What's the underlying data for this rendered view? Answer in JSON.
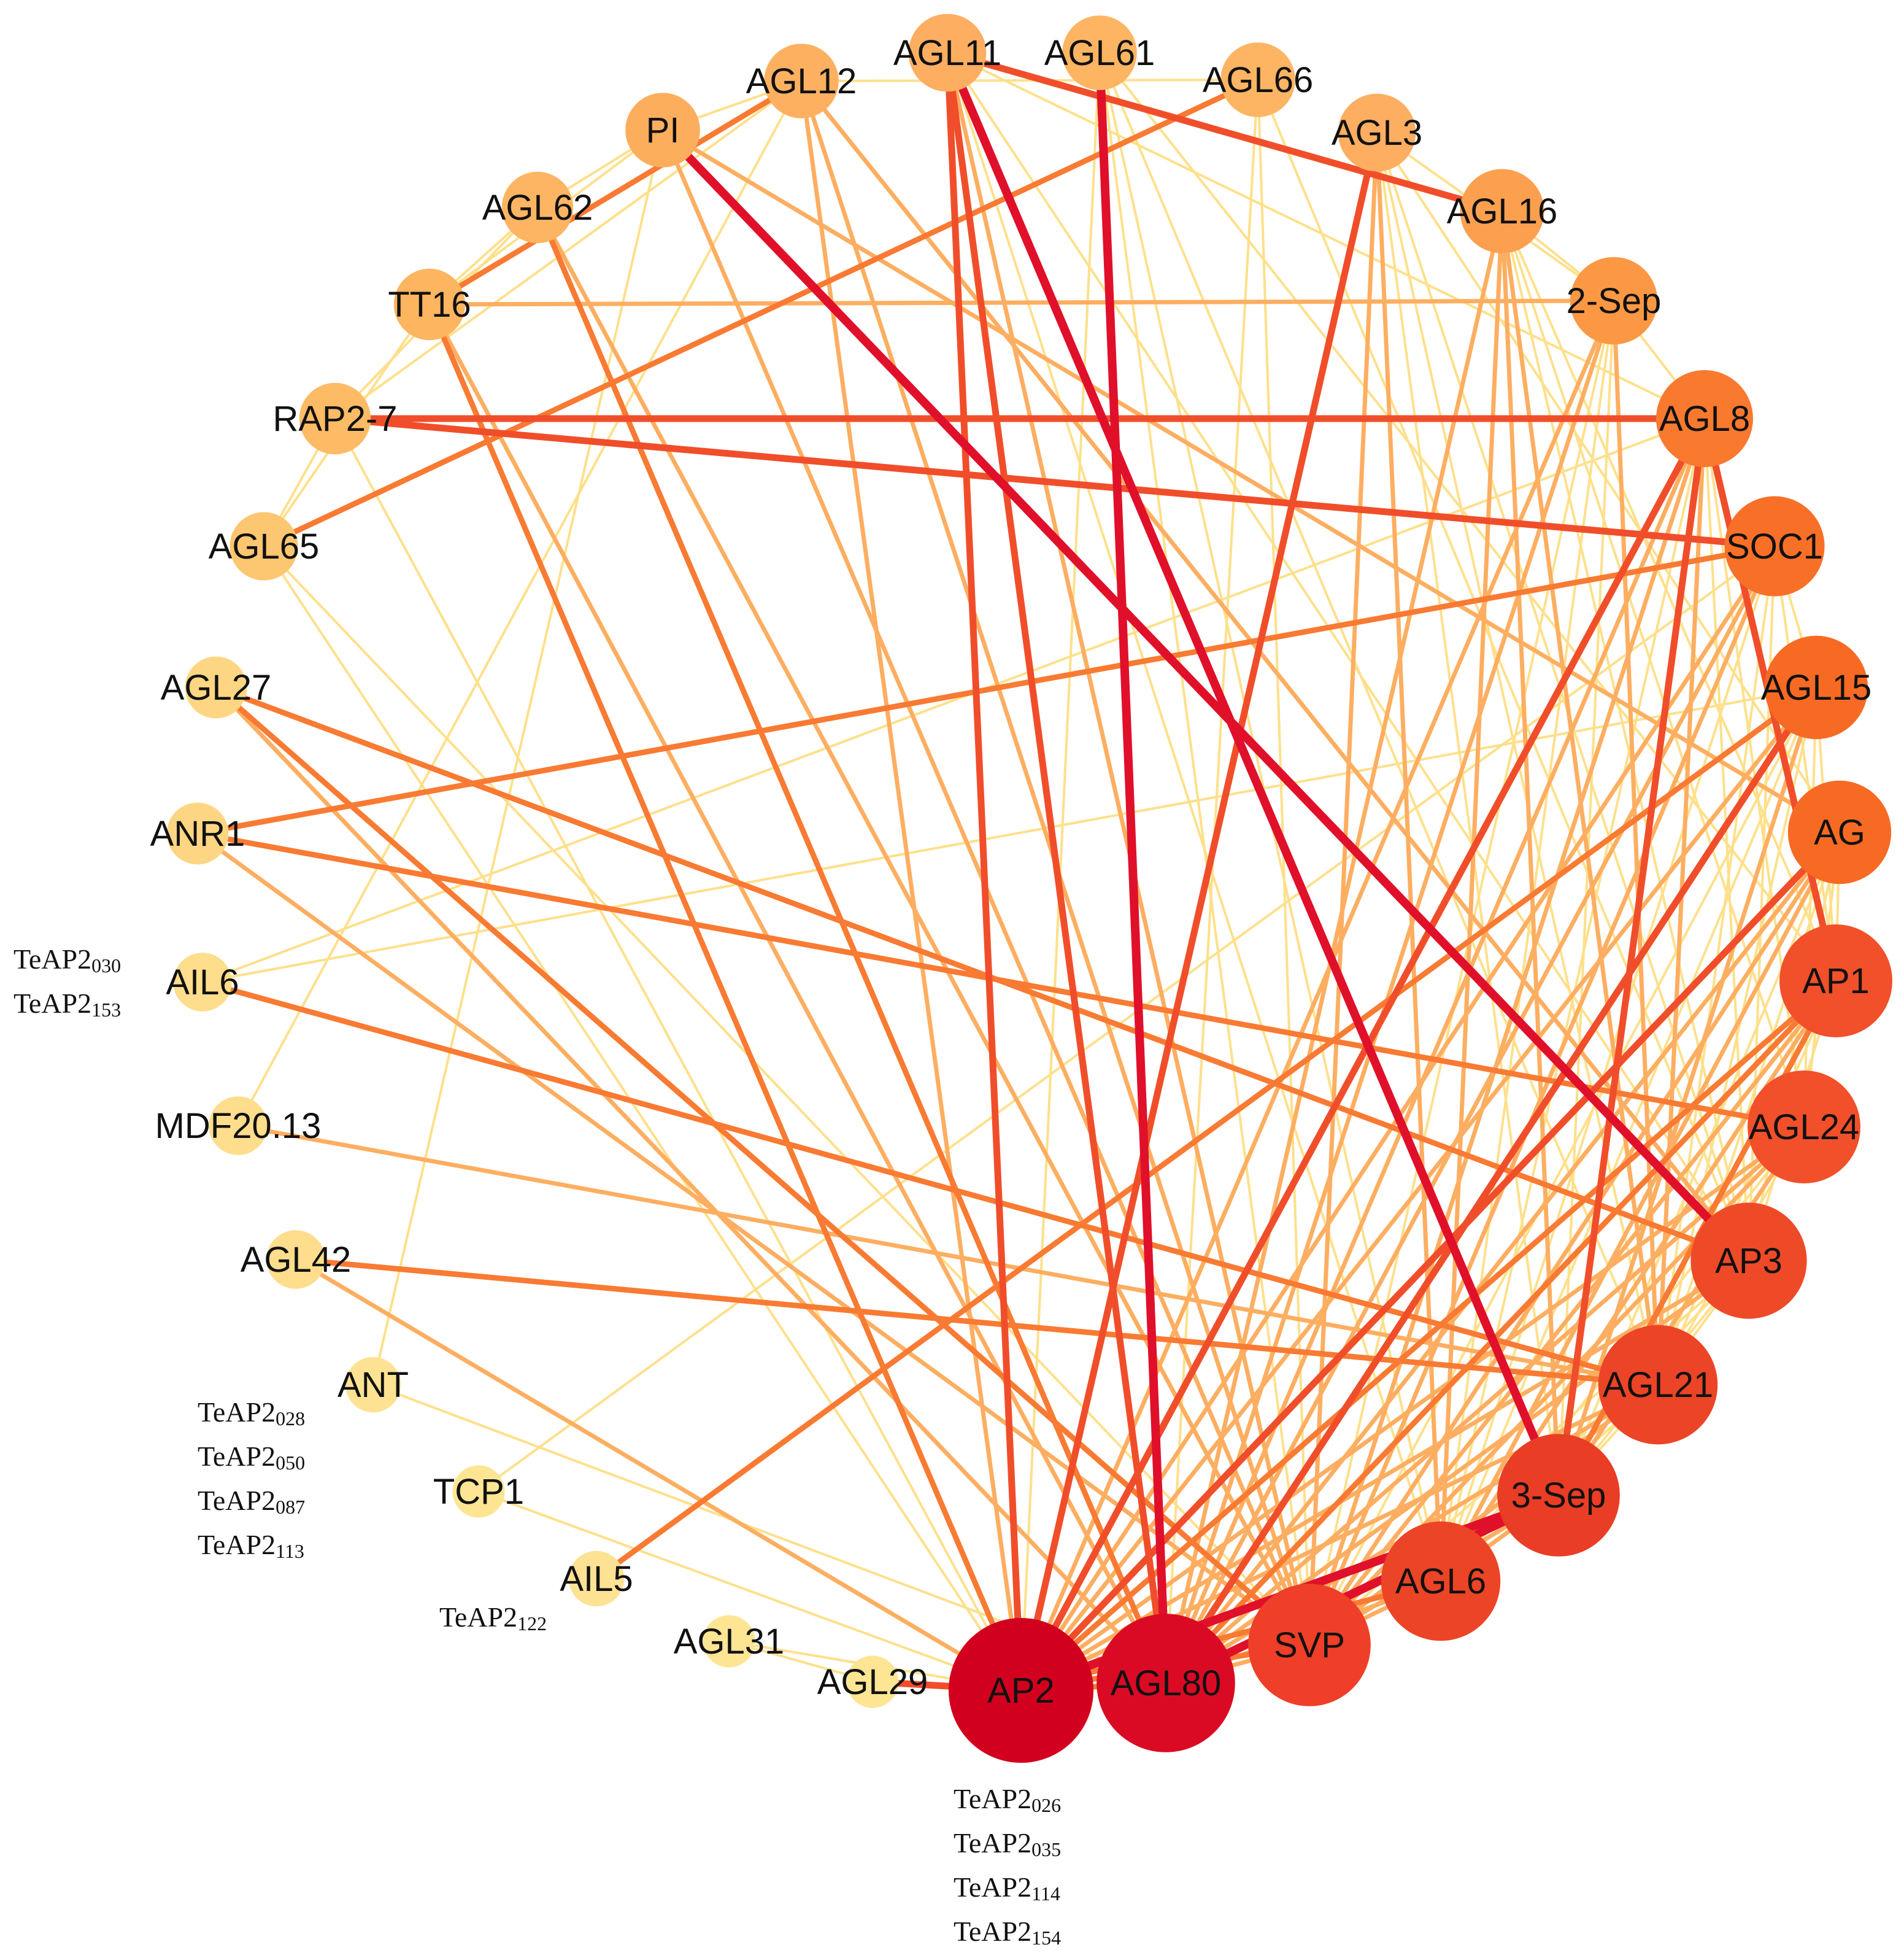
{
  "nodes": [
    {
      "id": "AGL11",
      "label": "AGL11",
      "degree": 9,
      "color": "#fdae61"
    },
    {
      "id": "AGL61",
      "label": "AGL61",
      "degree": 8,
      "color": "#fdb563"
    },
    {
      "id": "AGL66",
      "label": "AGL66",
      "degree": 8,
      "color": "#fdb563"
    },
    {
      "id": "AGL3",
      "label": "AGL3",
      "degree": 9,
      "color": "#fdae61"
    },
    {
      "id": "AGL16",
      "label": "AGL16",
      "degree": 11,
      "color": "#fca050"
    },
    {
      "id": "2-Sep",
      "label": "2-Sep",
      "degree": 12,
      "color": "#fc9844"
    },
    {
      "id": "AGL8",
      "label": "AGL8",
      "degree": 15,
      "color": "#f9792e"
    },
    {
      "id": "SOC1",
      "label": "SOC1",
      "degree": 16,
      "color": "#f87028"
    },
    {
      "id": "AGL15",
      "label": "AGL15",
      "degree": 17,
      "color": "#f76a24"
    },
    {
      "id": "AG",
      "label": "AG",
      "degree": 17,
      "color": "#f76a24"
    },
    {
      "id": "AP1",
      "label": "AP1",
      "degree": 20,
      "color": "#f1502a"
    },
    {
      "id": "AGL24",
      "label": "AGL24",
      "degree": 20,
      "color": "#f1502a"
    },
    {
      "id": "AP3",
      "label": "AP3",
      "degree": 21,
      "color": "#ef4a28"
    },
    {
      "id": "AGL21",
      "label": "AGL21",
      "degree": 22,
      "color": "#ec4426"
    },
    {
      "id": "3-Sep",
      "label": "3-Sep",
      "degree": 23,
      "color": "#e93d25"
    },
    {
      "id": "AGL6",
      "label": "AGL6",
      "degree": 22,
      "color": "#ec4426"
    },
    {
      "id": "SVP",
      "label": "SVP",
      "degree": 23,
      "color": "#ef3f28"
    },
    {
      "id": "AGL80",
      "label": "AGL80",
      "degree": 28,
      "color": "#db0a24"
    },
    {
      "id": "AP2",
      "label": "AP2",
      "degree": 30,
      "color": "#d2001e"
    },
    {
      "id": "AGL29",
      "label": "AGL29",
      "degree": 1,
      "color": "#fee594"
    },
    {
      "id": "AGL31",
      "label": "AGL31",
      "degree": 1,
      "color": "#fee594"
    },
    {
      "id": "AIL5",
      "label": "AIL5",
      "degree": 2,
      "color": "#fee294"
    },
    {
      "id": "TCP1",
      "label": "TCP1",
      "degree": 1,
      "color": "#fee594"
    },
    {
      "id": "ANT",
      "label": "ANT",
      "degree": 2,
      "color": "#fee294"
    },
    {
      "id": "AGL42",
      "label": "AGL42",
      "degree": 3,
      "color": "#fedd8c"
    },
    {
      "id": "MDF20.13",
      "label": "MDF20.13",
      "degree": 3,
      "color": "#fedd8c"
    },
    {
      "id": "AIL6",
      "label": "AIL6",
      "degree": 3,
      "color": "#fedd8c"
    },
    {
      "id": "ANR1",
      "label": "ANR1",
      "degree": 4,
      "color": "#fed683"
    },
    {
      "id": "AGL27",
      "label": "AGL27",
      "degree": 4,
      "color": "#fed683"
    },
    {
      "id": "AGL65",
      "label": "AGL65",
      "degree": 6,
      "color": "#fdc670"
    },
    {
      "id": "RAP2-7",
      "label": "RAP2-7",
      "degree": 7,
      "color": "#fdbb66"
    },
    {
      "id": "TT16",
      "label": "TT16",
      "degree": 7,
      "color": "#fdb55f"
    },
    {
      "id": "AGL62",
      "label": "AGL62",
      "degree": 7,
      "color": "#fdb563"
    },
    {
      "id": "PI",
      "label": "PI",
      "degree": 8,
      "color": "#fdae5d"
    },
    {
      "id": "AGL12",
      "label": "AGL12",
      "degree": 8,
      "color": "#fdb160"
    }
  ],
  "edges": [
    [
      "AGL11",
      "AP2",
      4
    ],
    [
      "AGL11",
      "AGL80",
      4
    ],
    [
      "AGL11",
      "3-Sep",
      5
    ],
    [
      "AGL11",
      "AGL16",
      4
    ],
    [
      "AGL11",
      "SVP",
      2
    ],
    [
      "AGL11",
      "AGL6",
      1
    ],
    [
      "AGL11",
      "AP3",
      1
    ],
    [
      "AGL11",
      "AGL8",
      1
    ],
    [
      "AGL61",
      "AGL80",
      5
    ],
    [
      "AGL61",
      "AP2",
      1
    ],
    [
      "AGL61",
      "SVP",
      1
    ],
    [
      "AGL61",
      "AGL21",
      1
    ],
    [
      "AGL61",
      "AP1",
      1
    ],
    [
      "AGL61",
      "AGL6",
      1
    ],
    [
      "AGL66",
      "AGL65",
      3
    ],
    [
      "AGL66",
      "AGL12",
      1
    ],
    [
      "AGL66",
      "AGL80",
      1
    ],
    [
      "AGL66",
      "SVP",
      1
    ],
    [
      "AGL66",
      "AP3",
      1
    ],
    [
      "AGL3",
      "AP2",
      4
    ],
    [
      "AGL3",
      "AGL6",
      2
    ],
    [
      "AGL3",
      "SVP",
      2
    ],
    [
      "AGL3",
      "AG",
      1
    ],
    [
      "AGL3",
      "AP3",
      1
    ],
    [
      "AGL3",
      "3-Sep",
      1
    ],
    [
      "AGL3",
      "AGL21",
      1
    ],
    [
      "AGL16",
      "AGL80",
      2
    ],
    [
      "AGL16",
      "AGL6",
      2
    ],
    [
      "AGL16",
      "3-Sep",
      2
    ],
    [
      "AGL16",
      "AP3",
      1
    ],
    [
      "AGL16",
      "AP1",
      1
    ],
    [
      "AGL16",
      "AGL21",
      2
    ],
    [
      "AGL16",
      "AGL24",
      1
    ],
    [
      "2-Sep",
      "AP2",
      2
    ],
    [
      "2-Sep",
      "AGL80",
      2
    ],
    [
      "2-Sep",
      "AGL6",
      1
    ],
    [
      "2-Sep",
      "3-Sep",
      1
    ],
    [
      "2-Sep",
      "SVP",
      1
    ],
    [
      "2-Sep",
      "AGL21",
      2
    ],
    [
      "2-Sep",
      "AGL3",
      1
    ],
    [
      "2-Sep",
      "AGL16",
      1
    ],
    [
      "AGL8",
      "AP2",
      4
    ],
    [
      "AGL8",
      "AGL80",
      2
    ],
    [
      "AGL8",
      "SVP",
      2
    ],
    [
      "AGL8",
      "AP1",
      4
    ],
    [
      "AGL8",
      "AGL6",
      1
    ],
    [
      "AGL8",
      "3-Sep",
      4
    ],
    [
      "AGL8",
      "AGL21",
      2
    ],
    [
      "AGL8",
      "AGL24",
      1
    ],
    [
      "AGL8",
      "AP3",
      1
    ],
    [
      "AGL8",
      "2-Sep",
      1
    ],
    [
      "SOC1",
      "RAP2-7",
      4
    ],
    [
      "SOC1",
      "ANR1",
      3
    ],
    [
      "SOC1",
      "AP2",
      2
    ],
    [
      "SOC1",
      "AGL80",
      2
    ],
    [
      "SOC1",
      "SVP",
      2
    ],
    [
      "SOC1",
      "AGL6",
      1
    ],
    [
      "SOC1",
      "AP3",
      1
    ],
    [
      "SOC1",
      "AGL21",
      1
    ],
    [
      "SOC1",
      "AP1",
      1
    ],
    [
      "SOC1",
      "AGL15",
      1
    ],
    [
      "AGL15",
      "AIL5",
      3
    ],
    [
      "AGL15",
      "AP2",
      2
    ],
    [
      "AGL15",
      "AGL80",
      4
    ],
    [
      "AGL15",
      "SVP",
      1
    ],
    [
      "AGL15",
      "AGL6",
      1
    ],
    [
      "AGL15",
      "3-Sep",
      2
    ],
    [
      "AGL15",
      "AGL21",
      1
    ],
    [
      "AGL15",
      "AGL24",
      1
    ],
    [
      "AGL15",
      "AIL6",
      1
    ],
    [
      "AG",
      "PI",
      2
    ],
    [
      "AG",
      "AP2",
      4
    ],
    [
      "AG",
      "AGL80",
      2
    ],
    [
      "AG",
      "SVP",
      2
    ],
    [
      "AG",
      "AGL6",
      2
    ],
    [
      "AG",
      "3-Sep",
      1
    ],
    [
      "AG",
      "AGL21",
      1
    ],
    [
      "AG",
      "AP3",
      1
    ],
    [
      "AG",
      "AGL24",
      1
    ],
    [
      "AP1",
      "AP2",
      3
    ],
    [
      "AP1",
      "AGL80",
      3
    ],
    [
      "AP1",
      "SVP",
      2
    ],
    [
      "AP1",
      "AGL6",
      2
    ],
    [
      "AP1",
      "3-Sep",
      3
    ],
    [
      "AP1",
      "AGL21",
      1
    ],
    [
      "AP1",
      "AP3",
      1
    ],
    [
      "AP1",
      "AGL15",
      1
    ],
    [
      "AP1",
      "AG",
      1
    ],
    [
      "AGL24",
      "AP2",
      2
    ],
    [
      "AGL24",
      "AGL80",
      2
    ],
    [
      "AGL24",
      "SVP",
      2
    ],
    [
      "AGL24",
      "AGL6",
      1
    ],
    [
      "AGL24",
      "3-Sep",
      2
    ],
    [
      "AGL24",
      "AGL21",
      1
    ],
    [
      "AGL24",
      "ANR1",
      3
    ],
    [
      "AGL24",
      "AG",
      1
    ],
    [
      "AP3",
      "PI",
      5
    ],
    [
      "AP3",
      "AP2",
      2
    ],
    [
      "AP3",
      "AGL80",
      2
    ],
    [
      "AP3",
      "SVP",
      1
    ],
    [
      "AP3",
      "AGL6",
      1
    ],
    [
      "AP3",
      "3-Sep",
      1
    ],
    [
      "AP3",
      "AGL21",
      1
    ],
    [
      "AP3",
      "AGL27",
      3
    ],
    [
      "AP3",
      "AGL12",
      2
    ],
    [
      "AGL21",
      "AGL42",
      3
    ],
    [
      "AGL21",
      "AP2",
      2
    ],
    [
      "AGL21",
      "AGL80",
      2
    ],
    [
      "AGL21",
      "SVP",
      2
    ],
    [
      "AGL21",
      "AGL6",
      1
    ],
    [
      "AGL21",
      "3-Sep",
      1
    ],
    [
      "AGL21",
      "MDF20.13",
      2
    ],
    [
      "AGL21",
      "AIL6",
      3
    ],
    [
      "3-Sep",
      "AP2",
      5
    ],
    [
      "3-Sep",
      "AGL80",
      5
    ],
    [
      "3-Sep",
      "SVP",
      2
    ],
    [
      "3-Sep",
      "AGL6",
      2
    ],
    [
      "AGL6",
      "AP2",
      3
    ],
    [
      "AGL6",
      "AGL80",
      2
    ],
    [
      "AGL6",
      "SVP",
      2
    ],
    [
      "SVP",
      "AP2",
      3
    ],
    [
      "SVP",
      "AGL80",
      2
    ],
    [
      "SVP",
      "AGL27",
      3
    ],
    [
      "SVP",
      "ANR1",
      2
    ],
    [
      "SVP",
      "AGL62",
      2
    ],
    [
      "SVP",
      "PI",
      2
    ],
    [
      "SVP",
      "AGL12",
      2
    ],
    [
      "AGL80",
      "AGL62",
      3
    ],
    [
      "AGL80",
      "TT16",
      2
    ],
    [
      "AGL80",
      "AGL27",
      2
    ],
    [
      "AGL80",
      "AP2",
      3
    ],
    [
      "AGL80",
      "ANT",
      1
    ],
    [
      "AP2",
      "AGL29",
      4
    ],
    [
      "AP2",
      "TT16",
      3
    ],
    [
      "AP2",
      "AGL12",
      2
    ],
    [
      "AP2",
      "AGL42",
      2
    ],
    [
      "AP2",
      "RAP2-7",
      1
    ],
    [
      "AP2",
      "AGL65",
      1
    ],
    [
      "AP2",
      "AGL31",
      1
    ],
    [
      "AP2",
      "TCP1",
      1
    ],
    [
      "RAP2-7",
      "AGL8",
      4
    ],
    [
      "RAP2-7",
      "AGL62",
      1
    ],
    [
      "RAP2-7",
      "AGL65",
      1
    ],
    [
      "RAP2-7",
      "AGL12",
      1
    ],
    [
      "TT16",
      "2-Sep",
      2
    ],
    [
      "TT16",
      "AGL12",
      3
    ],
    [
      "TT16",
      "AGL65",
      1
    ],
    [
      "TT16",
      "AGL80",
      1
    ],
    [
      "AGL62",
      "PI",
      1
    ],
    [
      "AGL62",
      "TT16",
      1
    ],
    [
      "PI",
      "TT16",
      1
    ],
    [
      "AGL12",
      "PI",
      1
    ],
    [
      "AGL65",
      "SVP",
      1
    ],
    [
      "MDF20.13",
      "AGL12",
      1
    ],
    [
      "AIL6",
      "AGL8",
      1
    ],
    [
      "ANT",
      "PI",
      1
    ],
    [
      "TCP1",
      "SOC1",
      1
    ],
    [
      "AGL31",
      "AGL29",
      1
    ]
  ],
  "edge_colors": [
    "#fee08b",
    "#fdae61",
    "#f97a32",
    "#f04e2a",
    "#e0102a"
  ],
  "annotations": [
    {
      "target": "AIL6",
      "lines": [
        {
          "base": "TeAP2",
          "sub": "030"
        },
        {
          "base": "TeAP2",
          "sub": "153"
        }
      ]
    },
    {
      "target": "ANT",
      "lines": [
        {
          "base": "TeAP2",
          "sub": "028"
        },
        {
          "base": "TeAP2",
          "sub": "050"
        },
        {
          "base": "TeAP2",
          "sub": "087"
        },
        {
          "base": "TeAP2",
          "sub": "113"
        }
      ]
    },
    {
      "target": "AIL5",
      "lines": [
        {
          "base": "TeAP2",
          "sub": "122"
        }
      ]
    },
    {
      "target": "AP2",
      "lines": [
        {
          "base": "TeAP2",
          "sub": "026"
        },
        {
          "base": "TeAP2",
          "sub": "035"
        },
        {
          "base": "TeAP2",
          "sub": "114"
        },
        {
          "base": "TeAP2",
          "sub": "154"
        }
      ]
    }
  ]
}
